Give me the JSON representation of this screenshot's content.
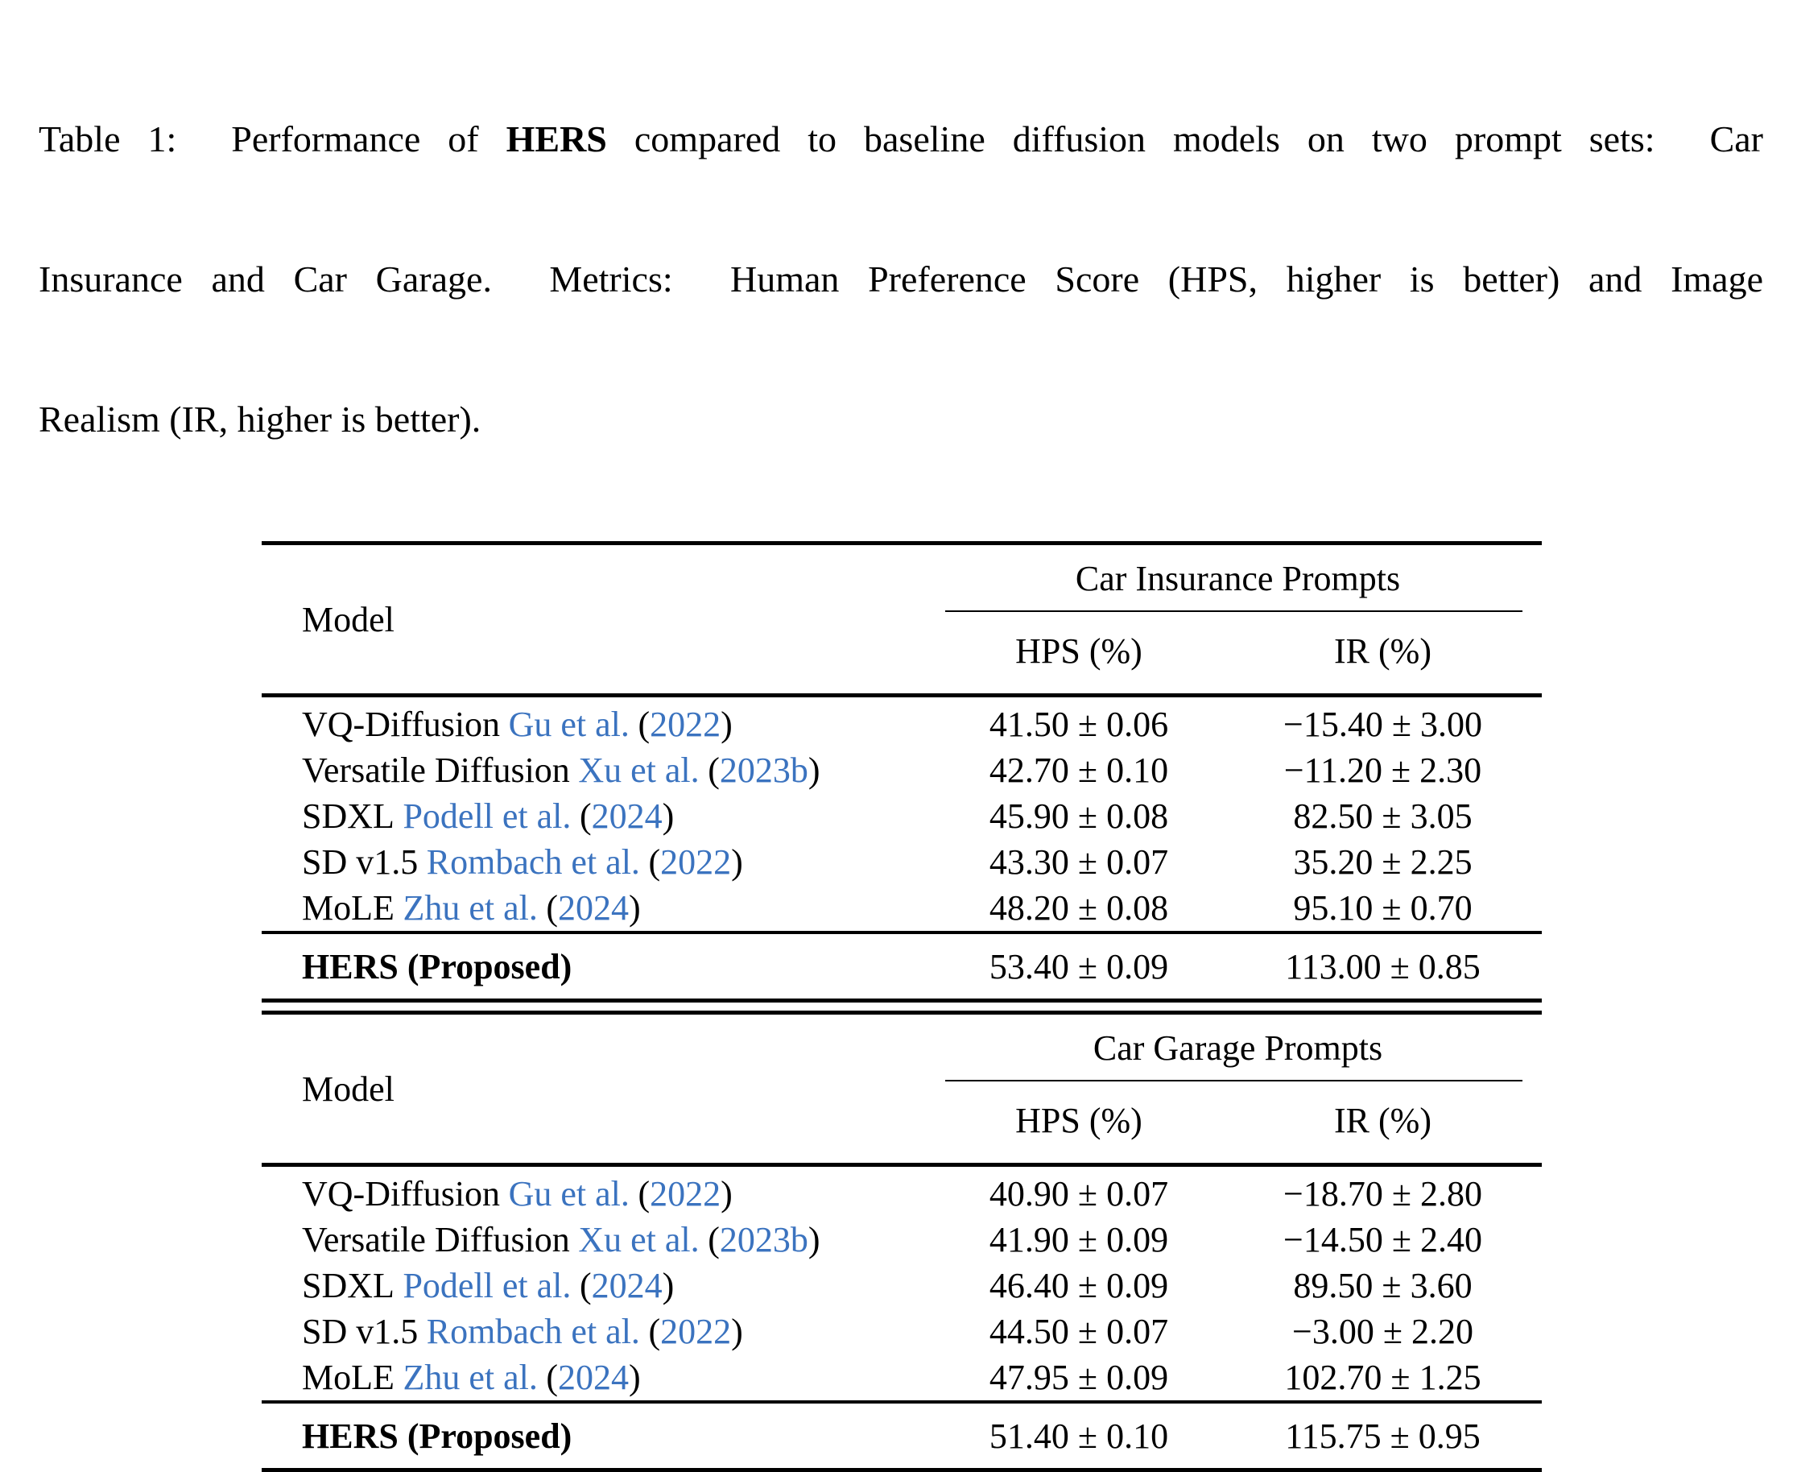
{
  "punct": {
    "open": "(",
    "close": ")"
  },
  "colors": {
    "citation_blue": "#3b73bf",
    "text": "#000000",
    "rule": "#000000"
  },
  "caption": {
    "line1_pre": "Table 1:  Performance of ",
    "line1_bold": "HERS",
    "line1_post": " compared to baseline diffusion models on two prompt sets:  Car",
    "line2": "Insurance and Car Garage.  Metrics:  Human Preference Score (HPS, higher is better) and Image",
    "line3": "Realism (IR, higher is better)."
  },
  "tables": [
    {
      "model_header": "Model",
      "group_header": "Car Insurance Prompts",
      "col_headers": [
        "HPS (%)",
        "IR (%)"
      ],
      "rows": [
        {
          "model": "VQ-Diffusion",
          "authors": "Gu et al.",
          "year": "2022",
          "hps": "41.50 ± 0.06",
          "ir": "−15.40 ± 3.00"
        },
        {
          "model": "Versatile Diffusion",
          "authors": "Xu et al.",
          "year": "2023b",
          "hps": "42.70 ± 0.10",
          "ir": "−11.20 ± 2.30"
        },
        {
          "model": "SDXL",
          "authors": "Podell et al.",
          "year": "2024",
          "hps": "45.90 ± 0.08",
          "ir": "82.50 ± 3.05"
        },
        {
          "model": "SD v1.5",
          "authors": "Rombach et al.",
          "year": "2022",
          "hps": "43.30 ± 0.07",
          "ir": "35.20 ± 2.25"
        },
        {
          "model": "MoLE",
          "authors": "Zhu et al.",
          "year": "2024",
          "hps": "48.20 ± 0.08",
          "ir": "95.10 ± 0.70"
        }
      ],
      "proposed": {
        "model": "HERS (Proposed)",
        "hps": "53.40 ± 0.09",
        "ir": "113.00 ± 0.85"
      }
    },
    {
      "model_header": "Model",
      "group_header": "Car Garage Prompts",
      "col_headers": [
        "HPS (%)",
        "IR (%)"
      ],
      "rows": [
        {
          "model": "VQ-Diffusion",
          "authors": "Gu et al.",
          "year": "2022",
          "hps": "40.90 ± 0.07",
          "ir": "−18.70 ± 2.80"
        },
        {
          "model": "Versatile Diffusion",
          "authors": "Xu et al.",
          "year": "2023b",
          "hps": "41.90 ± 0.09",
          "ir": "−14.50 ± 2.40"
        },
        {
          "model": "SDXL",
          "authors": "Podell et al.",
          "year": "2024",
          "hps": "46.40 ± 0.09",
          "ir": "89.50 ± 3.60"
        },
        {
          "model": "SD v1.5",
          "authors": "Rombach et al.",
          "year": "2022",
          "hps": "44.50 ± 0.07",
          "ir": "−3.00 ± 2.20"
        },
        {
          "model": "MoLE",
          "authors": "Zhu et al.",
          "year": "2024",
          "hps": "47.95 ± 0.09",
          "ir": "102.70 ± 1.25"
        }
      ],
      "proposed": {
        "model": "HERS (Proposed)",
        "hps": "51.40 ± 0.10",
        "ir": "115.75 ± 0.95"
      }
    }
  ]
}
